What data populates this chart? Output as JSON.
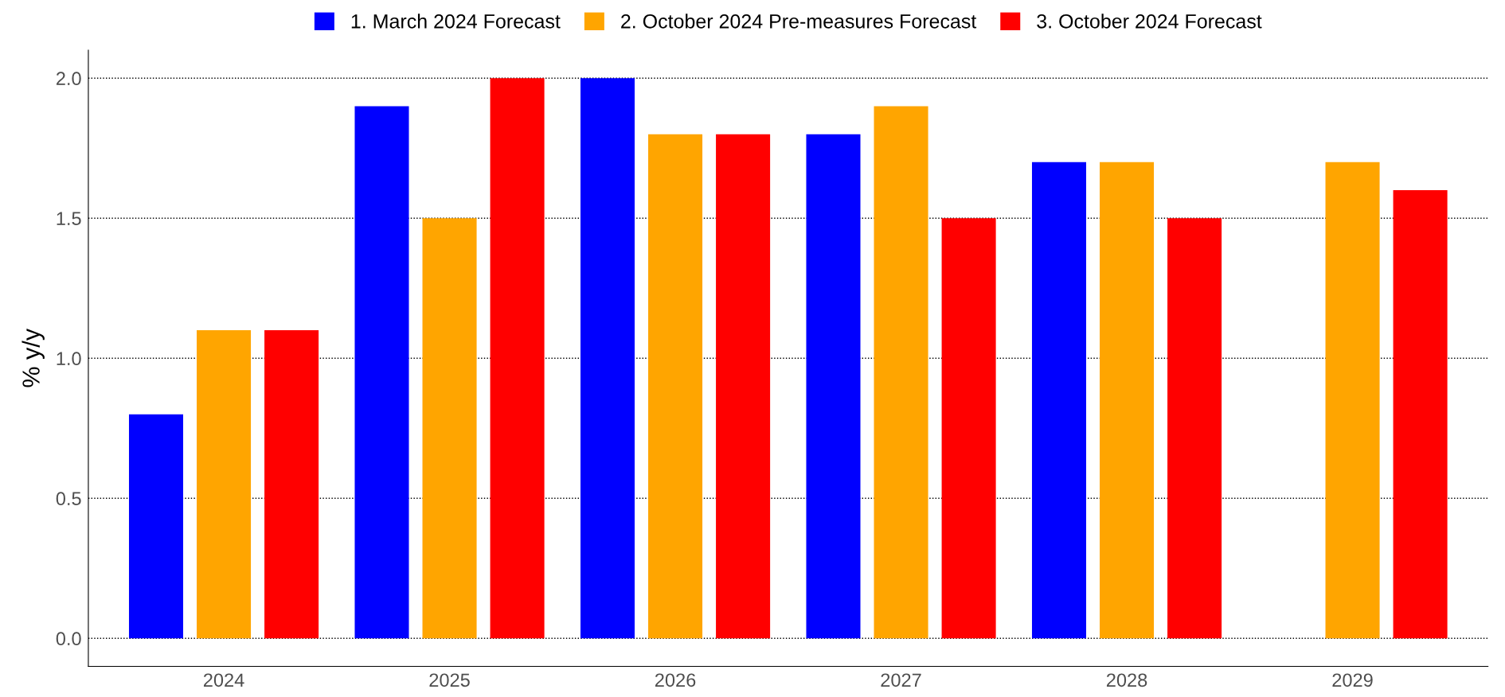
{
  "chart_data": {
    "type": "bar",
    "ylabel": "% y/y",
    "categories": [
      "2024",
      "2025",
      "2026",
      "2027",
      "2028",
      "2029"
    ],
    "series": [
      {
        "name": "1. March 2024 Forecast",
        "color": "#0000ff",
        "values": [
          0.8,
          1.9,
          2.0,
          1.8,
          1.7,
          null
        ]
      },
      {
        "name": "2. October 2024 Pre-measures Forecast",
        "color": "#ffa500",
        "values": [
          1.1,
          1.5,
          1.8,
          1.9,
          1.7,
          1.7
        ]
      },
      {
        "name": "3. October 2024 Forecast",
        "color": "#ff0000",
        "values": [
          1.1,
          2.0,
          1.8,
          1.5,
          1.5,
          1.6
        ]
      }
    ],
    "ylim": [
      -0.1,
      2.1
    ],
    "yticks": [
      {
        "value": 0,
        "label": "0.0"
      },
      0.5,
      {
        "value": 1,
        "label": "1.0"
      },
      1.5,
      {
        "value": 2,
        "label": "2.0"
      }
    ],
    "grid": "y",
    "legend": "top"
  }
}
